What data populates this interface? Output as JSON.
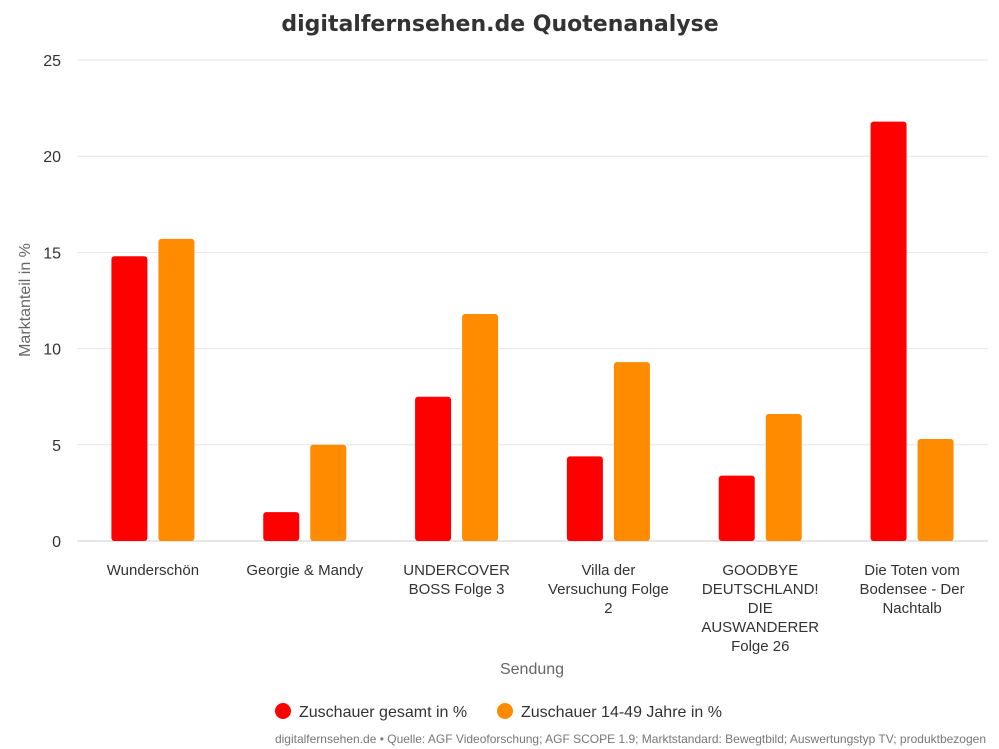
{
  "chart_data": {
    "type": "bar",
    "title": "digitalfernsehen.de Quotenanalyse",
    "xlabel": "Sendung",
    "ylabel": "Marktanteil in %",
    "ylim": [
      0,
      25
    ],
    "yticks": [
      0,
      5,
      10,
      15,
      20,
      25
    ],
    "grid": true,
    "legend_position": "bottom",
    "categories": [
      [
        "Wunderschön"
      ],
      [
        "Georgie & Mandy"
      ],
      [
        "UNDERCOVER",
        "BOSS Folge 3"
      ],
      [
        "Villa der",
        "Versuchung Folge",
        "2"
      ],
      [
        "GOODBYE",
        "DEUTSCHLAND!",
        "DIE",
        "AUSWANDERER",
        "Folge 26"
      ],
      [
        "Die Toten vom",
        "Bodensee - Der",
        "Nachtalb"
      ]
    ],
    "series": [
      {
        "name": "Zuschauer gesamt in %",
        "color": "#ff0000",
        "values": [
          14.8,
          1.5,
          7.5,
          4.4,
          3.4,
          21.8
        ]
      },
      {
        "name": "Zuschauer 14-49 Jahre in %",
        "color": "#ff8c00",
        "values": [
          15.7,
          5.0,
          11.8,
          9.3,
          6.6,
          5.3
        ]
      }
    ],
    "credits": "digitalfernsehen.de • Quelle: AGF Videoforschung; AGF SCOPE 1.9; Marktstandard: Bewegtbild; Auswertungstyp TV; produktbezogen"
  }
}
